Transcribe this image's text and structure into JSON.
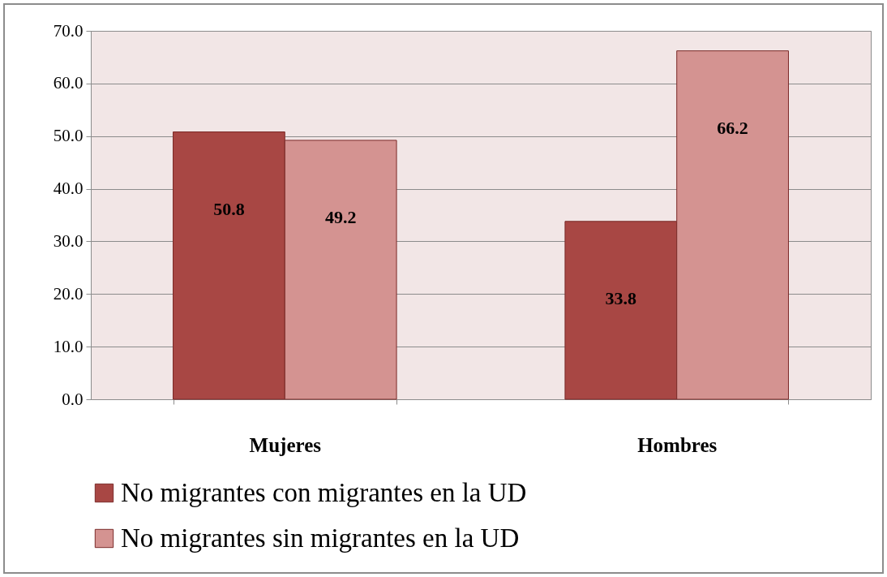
{
  "chart_data": {
    "type": "bar",
    "categories": [
      "Mujeres",
      "Hombres"
    ],
    "series": [
      {
        "name": "No migrantes con migrantes en la UD",
        "color": "#a84744",
        "values": [
          50.8,
          33.8
        ]
      },
      {
        "name": "No migrantes sin migrantes en la UD",
        "color": "#d49391",
        "values": [
          49.2,
          66.2
        ]
      }
    ],
    "ylim": [
      0,
      70
    ],
    "yticks": [
      {
        "value": 0,
        "label": "0.0"
      },
      {
        "value": 10,
        "label": "10.0"
      },
      {
        "value": 20,
        "label": "20.0"
      },
      {
        "value": 30,
        "label": "30.0"
      },
      {
        "value": 40,
        "label": "40.0"
      },
      {
        "value": 50,
        "label": "50.0"
      },
      {
        "value": 60,
        "label": "60.0"
      },
      {
        "value": 70,
        "label": "70.0"
      }
    ],
    "grid": "y",
    "legend": "bottom",
    "data_labels": true
  }
}
